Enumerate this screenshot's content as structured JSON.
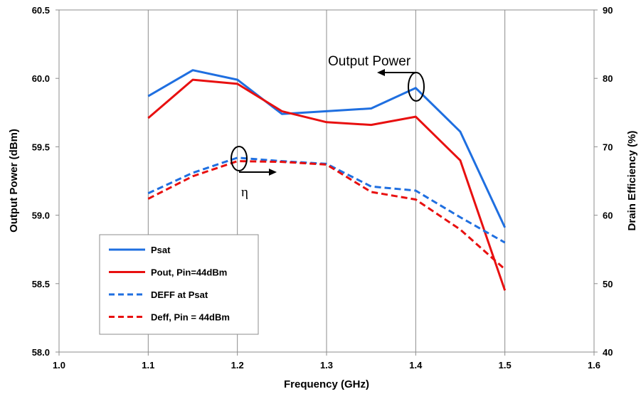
{
  "chart_data": {
    "type": "line",
    "title": "",
    "xlabel": "Frequency (GHz)",
    "ylabel_left": "Output Power (dBm)",
    "ylabel_right": "Drain Efficiency (%)",
    "xlim": [
      1.0,
      1.6
    ],
    "ylim_left": [
      58.0,
      60.5
    ],
    "ylim_right": [
      40,
      90
    ],
    "x_ticks": [
      "1.0",
      "1.1",
      "1.2",
      "1.3",
      "1.4",
      "1.5",
      "1.6"
    ],
    "y_left_ticks": [
      "58.0",
      "58.5",
      "59.0",
      "59.5",
      "60.0",
      "60.5"
    ],
    "y_right_ticks": [
      "40",
      "50",
      "60",
      "70",
      "80",
      "90"
    ],
    "grid": "vertical",
    "legend_position": "bottom-left",
    "x": [
      1.1,
      1.15,
      1.2,
      1.25,
      1.3,
      1.35,
      1.4,
      1.45,
      1.5
    ],
    "series": [
      {
        "name": "Psat",
        "axis": "left",
        "style": "solid",
        "color": "#1f6fe0",
        "values": [
          59.87,
          60.06,
          59.99,
          59.74,
          59.76,
          59.78,
          59.93,
          59.61,
          58.91
        ]
      },
      {
        "name": "Pout, Pin=44dBm",
        "axis": "left",
        "style": "solid",
        "color": "#e81010",
        "values": [
          59.71,
          59.99,
          59.96,
          59.76,
          59.68,
          59.66,
          59.72,
          59.4,
          58.45
        ]
      },
      {
        "name": "DEFF at Psat",
        "axis": "right",
        "style": "dashed",
        "color": "#1f6fe0",
        "values": [
          63.2,
          66.2,
          68.4,
          67.9,
          67.5,
          64.2,
          63.6,
          59.7,
          56.0
        ]
      },
      {
        "name": "Deff, Pin = 44dBm",
        "axis": "right",
        "style": "dashed",
        "color": "#e81010",
        "values": [
          62.4,
          65.7,
          67.9,
          67.8,
          67.4,
          63.4,
          62.3,
          57.9,
          52.1
        ]
      }
    ],
    "annotations": [
      {
        "text": "Output Power",
        "points_to": "left axis"
      },
      {
        "text": "η",
        "points_to": "right axis"
      }
    ]
  }
}
